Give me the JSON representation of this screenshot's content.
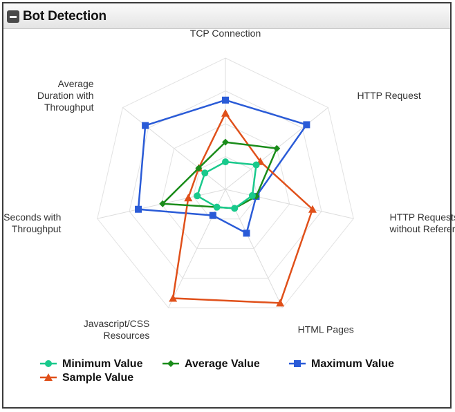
{
  "panel": {
    "title": "Bot Detection"
  },
  "colors": {
    "min": "#19c98c",
    "avg": "#1a8c1a",
    "max": "#2a5bd7",
    "sample": "#e0501a"
  },
  "chart_data": {
    "type": "radar",
    "title": "",
    "axes": [
      [
        "TCP Connection"
      ],
      [
        "HTTP Request"
      ],
      [
        "HTTP Requests",
        "without Referer"
      ],
      [
        "HTML Pages"
      ],
      [
        "Javascript/CSS",
        "Resources"
      ],
      [
        "Seconds with",
        "Throughput"
      ],
      [
        "Average",
        "Duration with",
        "Throughput"
      ]
    ],
    "rmax": 1.0,
    "rings": [
      0.25,
      0.5,
      0.75,
      1.0
    ],
    "series": [
      {
        "name": "Maximum Value",
        "key": "max",
        "marker": "square",
        "values": [
          0.68,
          0.79,
          0.24,
          0.37,
          0.22,
          0.68,
          0.78
        ]
      },
      {
        "name": "Sample Value",
        "key": "sample",
        "marker": "triangle",
        "values": [
          0.58,
          0.34,
          0.68,
          0.96,
          0.92,
          0.29,
          0.26
        ]
      },
      {
        "name": "Average Value",
        "key": "avg",
        "marker": "diamond",
        "values": [
          0.36,
          0.5,
          0.24,
          0.16,
          0.15,
          0.49,
          0.26
        ]
      },
      {
        "name": "Minimum Value",
        "key": "min",
        "marker": "circle",
        "values": [
          0.21,
          0.3,
          0.21,
          0.16,
          0.15,
          0.22,
          0.2
        ]
      }
    ],
    "legend": {
      "position": "bottom",
      "entries": [
        {
          "name": "Minimum Value",
          "key": "min",
          "marker": "circle"
        },
        {
          "name": "Average Value",
          "key": "avg",
          "marker": "diamond"
        },
        {
          "name": "Maximum Value",
          "key": "max",
          "marker": "square"
        },
        {
          "name": "Sample Value",
          "key": "sample",
          "marker": "triangle"
        }
      ]
    },
    "grid": true
  }
}
